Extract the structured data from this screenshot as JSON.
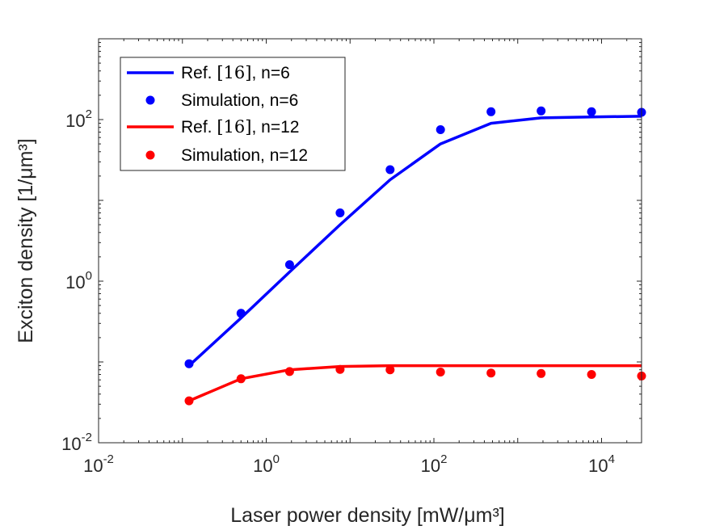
{
  "chart_data": {
    "type": "line",
    "xscale": "log",
    "yscale": "log",
    "xlim": [
      0.01,
      30000
    ],
    "ylim": [
      0.01,
      1000
    ],
    "xlabel": "Laser power density [mW/μm³]",
    "ylabel": "Exciton density [1/μm³]",
    "xticks": [
      {
        "value": 0.01,
        "base": "10",
        "exp": "-2"
      },
      {
        "value": 1,
        "base": "10",
        "exp": "0"
      },
      {
        "value": 100,
        "base": "10",
        "exp": "2"
      },
      {
        "value": 10000,
        "base": "10",
        "exp": "4"
      }
    ],
    "yticks": [
      {
        "value": 0.01,
        "base": "10",
        "exp": "-2"
      },
      {
        "value": 1,
        "base": "10",
        "exp": "0"
      },
      {
        "value": 100,
        "base": "10",
        "exp": "2"
      }
    ],
    "legend_location": "top-left",
    "series": [
      {
        "name": "Ref. [16], n=6",
        "label_parts": [
          "Ref. ",
          "[16]",
          ", n=6"
        ],
        "style": "line",
        "color": "#0000ff",
        "x": [
          0.12,
          0.5,
          1.9,
          7.6,
          30,
          120,
          480,
          1900,
          7600,
          30000
        ],
        "y": [
          0.09,
          0.35,
          1.3,
          5,
          18,
          50,
          90,
          105,
          108,
          110
        ]
      },
      {
        "name": "Simulation, n=6",
        "label_parts": [
          "Simulation, n=6"
        ],
        "style": "markers",
        "color": "#0000ff",
        "x": [
          0.12,
          0.5,
          1.9,
          7.6,
          30,
          120,
          480,
          1900,
          7600,
          30000
        ],
        "y": [
          0.095,
          0.4,
          1.6,
          7,
          24,
          75,
          125,
          128,
          125,
          123
        ]
      },
      {
        "name": "Ref. [16], n=12",
        "label_parts": [
          "Ref. ",
          "[16]",
          ", n=12"
        ],
        "style": "line",
        "color": "#ff0000",
        "x": [
          0.12,
          0.5,
          1.9,
          7.6,
          30,
          120,
          480,
          1900,
          7600,
          30000
        ],
        "y": [
          0.033,
          0.062,
          0.08,
          0.088,
          0.09,
          0.09,
          0.09,
          0.09,
          0.09,
          0.09
        ]
      },
      {
        "name": "Simulation, n=12",
        "label_parts": [
          "Simulation, n=12"
        ],
        "style": "markers",
        "color": "#ff0000",
        "x": [
          0.12,
          0.5,
          1.9,
          7.6,
          30,
          120,
          480,
          1900,
          7600,
          30000
        ],
        "y": [
          0.033,
          0.062,
          0.076,
          0.081,
          0.08,
          0.075,
          0.073,
          0.072,
          0.07,
          0.067
        ]
      }
    ]
  }
}
